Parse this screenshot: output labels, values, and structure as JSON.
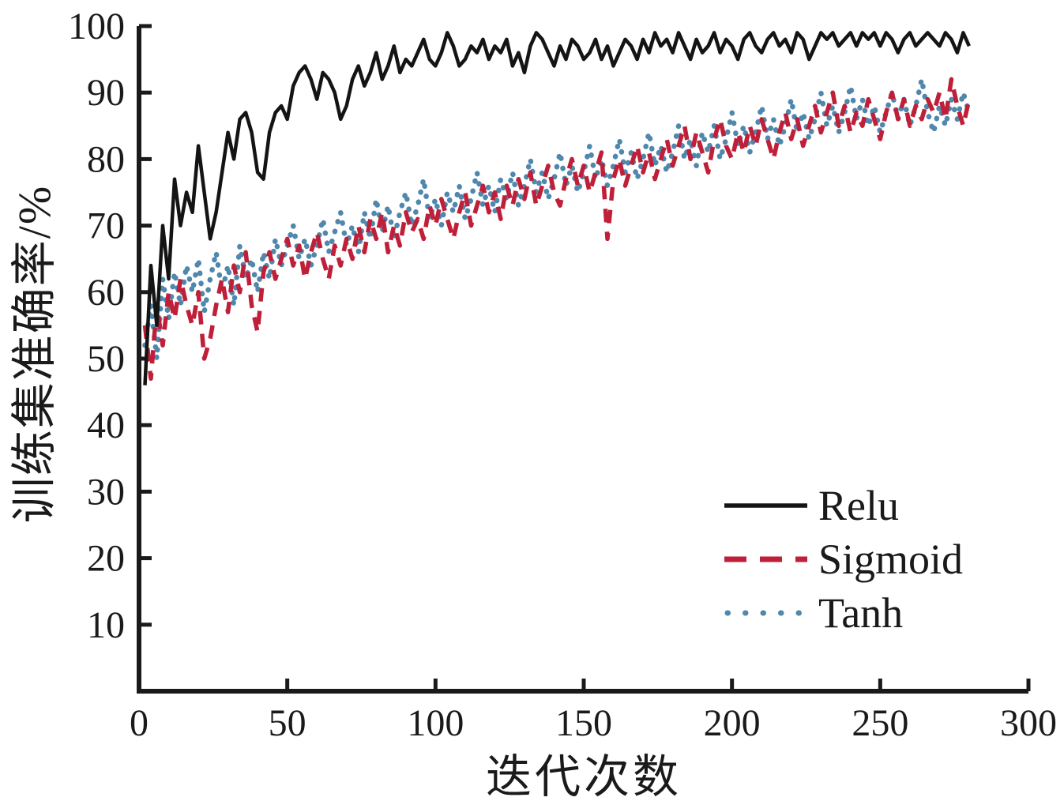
{
  "chart_data": {
    "type": "line",
    "title": "",
    "xlabel": "迭代次数",
    "ylabel": "训练集准确率/%",
    "xlim": [
      0,
      300
    ],
    "ylim": [
      0,
      100
    ],
    "x_ticks": [
      0,
      50,
      100,
      150,
      200,
      250,
      300
    ],
    "y_ticks": [
      10,
      20,
      30,
      40,
      50,
      60,
      70,
      80,
      90,
      100
    ],
    "x_tick_labels": [
      "0",
      "50",
      "100",
      "150",
      "200",
      "250",
      "300"
    ],
    "y_tick_labels": [
      "10",
      "20",
      "30",
      "40",
      "50",
      "60",
      "70",
      "80",
      "90",
      "100"
    ],
    "grid": false,
    "legend_position": "inside lower right",
    "x_start": 2,
    "x_step": 2,
    "ink_color": "#1a1a1a",
    "series": [
      {
        "name": "Relu",
        "style": "solid",
        "color": "#141414",
        "values": [
          46,
          64,
          55,
          70,
          62,
          77,
          70,
          75,
          72,
          82,
          75,
          68,
          72,
          78,
          84,
          80,
          86,
          87,
          84,
          78,
          77,
          84,
          87,
          88,
          86,
          91,
          93,
          94,
          92,
          89,
          93,
          92,
          90,
          86,
          88,
          92,
          94,
          91,
          93,
          96,
          92,
          94,
          97,
          93,
          95,
          94,
          96,
          98,
          95,
          94,
          96,
          99,
          97,
          94,
          95,
          97,
          96,
          98,
          95,
          97,
          96,
          98,
          94,
          96,
          93,
          97,
          99,
          98,
          96,
          94,
          97,
          95,
          98,
          97,
          95,
          96,
          98,
          95,
          97,
          94,
          96,
          98,
          97,
          95,
          98,
          96,
          99,
          97,
          98,
          96,
          99,
          97,
          95,
          98,
          96,
          97,
          99,
          96,
          98,
          97,
          95,
          98,
          99,
          97,
          96,
          98,
          99,
          97,
          98,
          96,
          99,
          98,
          95,
          97,
          99,
          98,
          99,
          97,
          98,
          99,
          97,
          99,
          98,
          99,
          97,
          99,
          98,
          96,
          98,
          99,
          97,
          98,
          99,
          98,
          97,
          99,
          98,
          96,
          99,
          97
        ]
      },
      {
        "name": "Sigmoid",
        "style": "dashed",
        "color": "#bf1f38",
        "values": [
          55,
          47,
          58,
          52,
          60,
          56,
          62,
          58,
          55,
          60,
          50,
          53,
          58,
          62,
          57,
          64,
          60,
          66,
          58,
          54,
          63,
          66,
          62,
          65,
          68,
          64,
          67,
          62,
          66,
          69,
          65,
          62,
          67,
          64,
          68,
          65,
          70,
          66,
          71,
          68,
          72,
          66,
          70,
          67,
          72,
          69,
          71,
          68,
          73,
          70,
          74,
          71,
          68,
          72,
          75,
          70,
          73,
          76,
          72,
          75,
          71,
          76,
          73,
          77,
          74,
          78,
          73,
          76,
          79,
          75,
          73,
          77,
          80,
          76,
          79,
          75,
          78,
          81,
          68,
          77,
          80,
          76,
          79,
          82,
          78,
          81,
          77,
          80,
          83,
          79,
          82,
          85,
          80,
          84,
          81,
          78,
          83,
          86,
          82,
          80,
          84,
          81,
          85,
          82,
          86,
          83,
          80,
          84,
          87,
          83,
          86,
          82,
          85,
          88,
          84,
          87,
          90,
          85,
          88,
          84,
          87,
          85,
          89,
          86,
          83,
          87,
          90,
          86,
          89,
          85,
          88,
          86,
          89,
          87,
          90,
          86,
          92,
          88,
          85,
          89
        ]
      },
      {
        "name": "Tanh",
        "style": "dotted",
        "color": "#4f87ad",
        "values": [
          52,
          58,
          50,
          62,
          56,
          63,
          58,
          64,
          60,
          65,
          57,
          62,
          66,
          60,
          64,
          58,
          67,
          62,
          65,
          60,
          66,
          62,
          68,
          64,
          67,
          70,
          65,
          68,
          64,
          67,
          71,
          66,
          69,
          72,
          67,
          70,
          66,
          72,
          68,
          74,
          69,
          73,
          68,
          72,
          75,
          70,
          73,
          77,
          71,
          74,
          70,
          75,
          72,
          76,
          71,
          74,
          78,
          73,
          76,
          72,
          77,
          74,
          78,
          73,
          76,
          80,
          75,
          78,
          74,
          77,
          81,
          76,
          79,
          75,
          78,
          82,
          77,
          80,
          76,
          79,
          83,
          78,
          81,
          77,
          80,
          84,
          79,
          82,
          78,
          81,
          85,
          80,
          83,
          79,
          84,
          81,
          85,
          80,
          83,
          87,
          82,
          85,
          81,
          84,
          88,
          83,
          86,
          82,
          85,
          89,
          84,
          87,
          83,
          86,
          90,
          85,
          88,
          84,
          87,
          91,
          86,
          89,
          85,
          88,
          84,
          87,
          90,
          86,
          89,
          85,
          88,
          92,
          87,
          84,
          88,
          85,
          89,
          86,
          90,
          87
        ]
      }
    ]
  },
  "legend": {
    "items": [
      {
        "label": "Relu"
      },
      {
        "label": "Sigmoid"
      },
      {
        "label": "Tanh"
      }
    ]
  }
}
